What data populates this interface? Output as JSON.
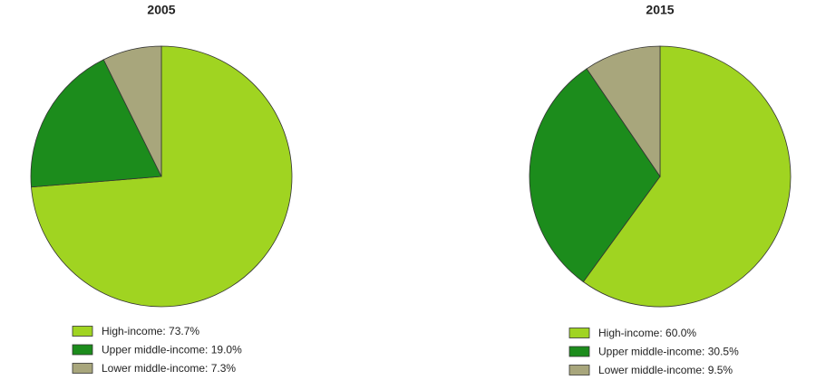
{
  "chart_data": [
    {
      "type": "pie",
      "title": "2005",
      "categories": [
        "High-income: 73.7%",
        "Upper middle-income: 19.0%",
        "Lower middle-income: 7.3%"
      ],
      "values": [
        73.7,
        19.0,
        7.3
      ],
      "colors": [
        "#a0d421",
        "#1c8c1c",
        "#a8a67c"
      ]
    },
    {
      "type": "pie",
      "title": "2015",
      "categories": [
        "High-income: 60.0%",
        "Upper middle-income: 30.5%",
        "Lower middle-income: 9.5%"
      ],
      "values": [
        60.0,
        30.5,
        9.5
      ],
      "colors": [
        "#a0d421",
        "#1c8c1c",
        "#a8a67c"
      ]
    }
  ]
}
